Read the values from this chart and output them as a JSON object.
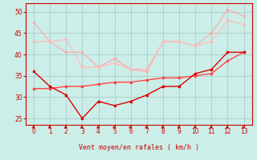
{
  "xlabel": "Vent moyen/en rafales ( km/h )",
  "background_color": "#cceee8",
  "grid_color": "#aacccc",
  "x": [
    0,
    1,
    2,
    3,
    4,
    5,
    6,
    7,
    8,
    9,
    10,
    11,
    12,
    13
  ],
  "line1": [
    47.5,
    43.0,
    40.5,
    40.5,
    37.0,
    39.0,
    36.5,
    36.0,
    43.0,
    43.0,
    42.0,
    45.0,
    50.5,
    49.0
  ],
  "line2": [
    43.0,
    43.0,
    43.5,
    37.0,
    37.0,
    38.0,
    36.5,
    36.5,
    43.0,
    43.0,
    42.0,
    43.0,
    48.0,
    47.0
  ],
  "line3": [
    36.0,
    32.5,
    30.5,
    25.0,
    29.0,
    28.0,
    29.0,
    30.5,
    32.5,
    32.5,
    35.5,
    36.5,
    40.5,
    40.5
  ],
  "line4": [
    32.0,
    32.0,
    32.5,
    32.5,
    33.0,
    33.5,
    33.5,
    34.0,
    34.5,
    34.5,
    35.0,
    35.5,
    38.5,
    40.5
  ],
  "line1_color": "#ffaaaa",
  "line2_color": "#ffbbbb",
  "line3_color": "#dd0000",
  "line4_color": "#ff4444",
  "ylim": [
    23.5,
    52.0
  ],
  "yticks": [
    25,
    30,
    35,
    40,
    45,
    50
  ],
  "xticks": [
    0,
    1,
    2,
    3,
    4,
    5,
    6,
    7,
    8,
    9,
    10,
    11,
    12,
    13
  ],
  "arrow_color": "#cc0000"
}
